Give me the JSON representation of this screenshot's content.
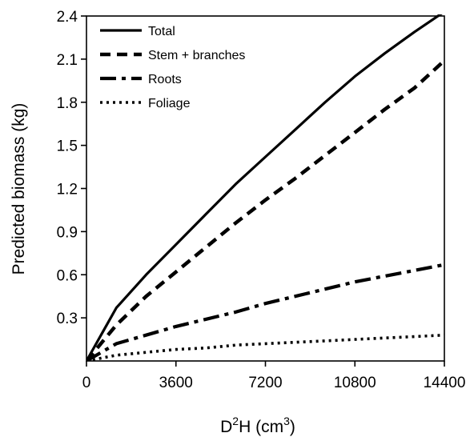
{
  "chart_data": {
    "type": "line",
    "title": "",
    "xlabel": "D²H (cm³)",
    "xlabel_parts": {
      "base": "D",
      "sup1": "2",
      "mid": "H (cm",
      "sup2": "3",
      "end": ")"
    },
    "ylabel": "Predicted biomass (kg)",
    "xlim": [
      0,
      14400
    ],
    "ylim": [
      0,
      2.4
    ],
    "xticks": [
      0,
      3600,
      7200,
      10800,
      14400
    ],
    "xtick_labels": [
      "0",
      "3600",
      "7200",
      "10800",
      "14400"
    ],
    "yticks": [
      0.3,
      0.6,
      0.9,
      1.2,
      1.5,
      1.8,
      2.1,
      2.4
    ],
    "ytick_labels": [
      "0.3",
      "0.6",
      "0.9",
      "1.2",
      "1.5",
      "1.8",
      "2.1",
      "2.4"
    ],
    "grid": false,
    "legend_position": "top-left",
    "x": [
      0,
      1200,
      2400,
      3600,
      4800,
      6000,
      7200,
      8400,
      9600,
      10800,
      12000,
      13200,
      14400
    ],
    "series": [
      {
        "name": "Total",
        "style": "solid",
        "values": [
          0,
          0.37,
          0.6,
          0.81,
          1.02,
          1.23,
          1.42,
          1.61,
          1.8,
          1.98,
          2.14,
          2.29,
          2.43
        ]
      },
      {
        "name": "Stem + branches",
        "style": "dashed",
        "values": [
          0,
          0.25,
          0.45,
          0.62,
          0.79,
          0.96,
          1.12,
          1.27,
          1.43,
          1.59,
          1.75,
          1.9,
          2.09
        ]
      },
      {
        "name": "Roots",
        "style": "dashdot",
        "values": [
          0,
          0.12,
          0.18,
          0.24,
          0.29,
          0.34,
          0.4,
          0.45,
          0.5,
          0.55,
          0.59,
          0.63,
          0.67
        ]
      },
      {
        "name": "Foliage",
        "style": "dotted",
        "values": [
          0,
          0.04,
          0.06,
          0.08,
          0.09,
          0.11,
          0.12,
          0.13,
          0.14,
          0.15,
          0.16,
          0.17,
          0.18
        ]
      }
    ],
    "colors": {
      "line": "#000000",
      "axis": "#000000"
    }
  }
}
